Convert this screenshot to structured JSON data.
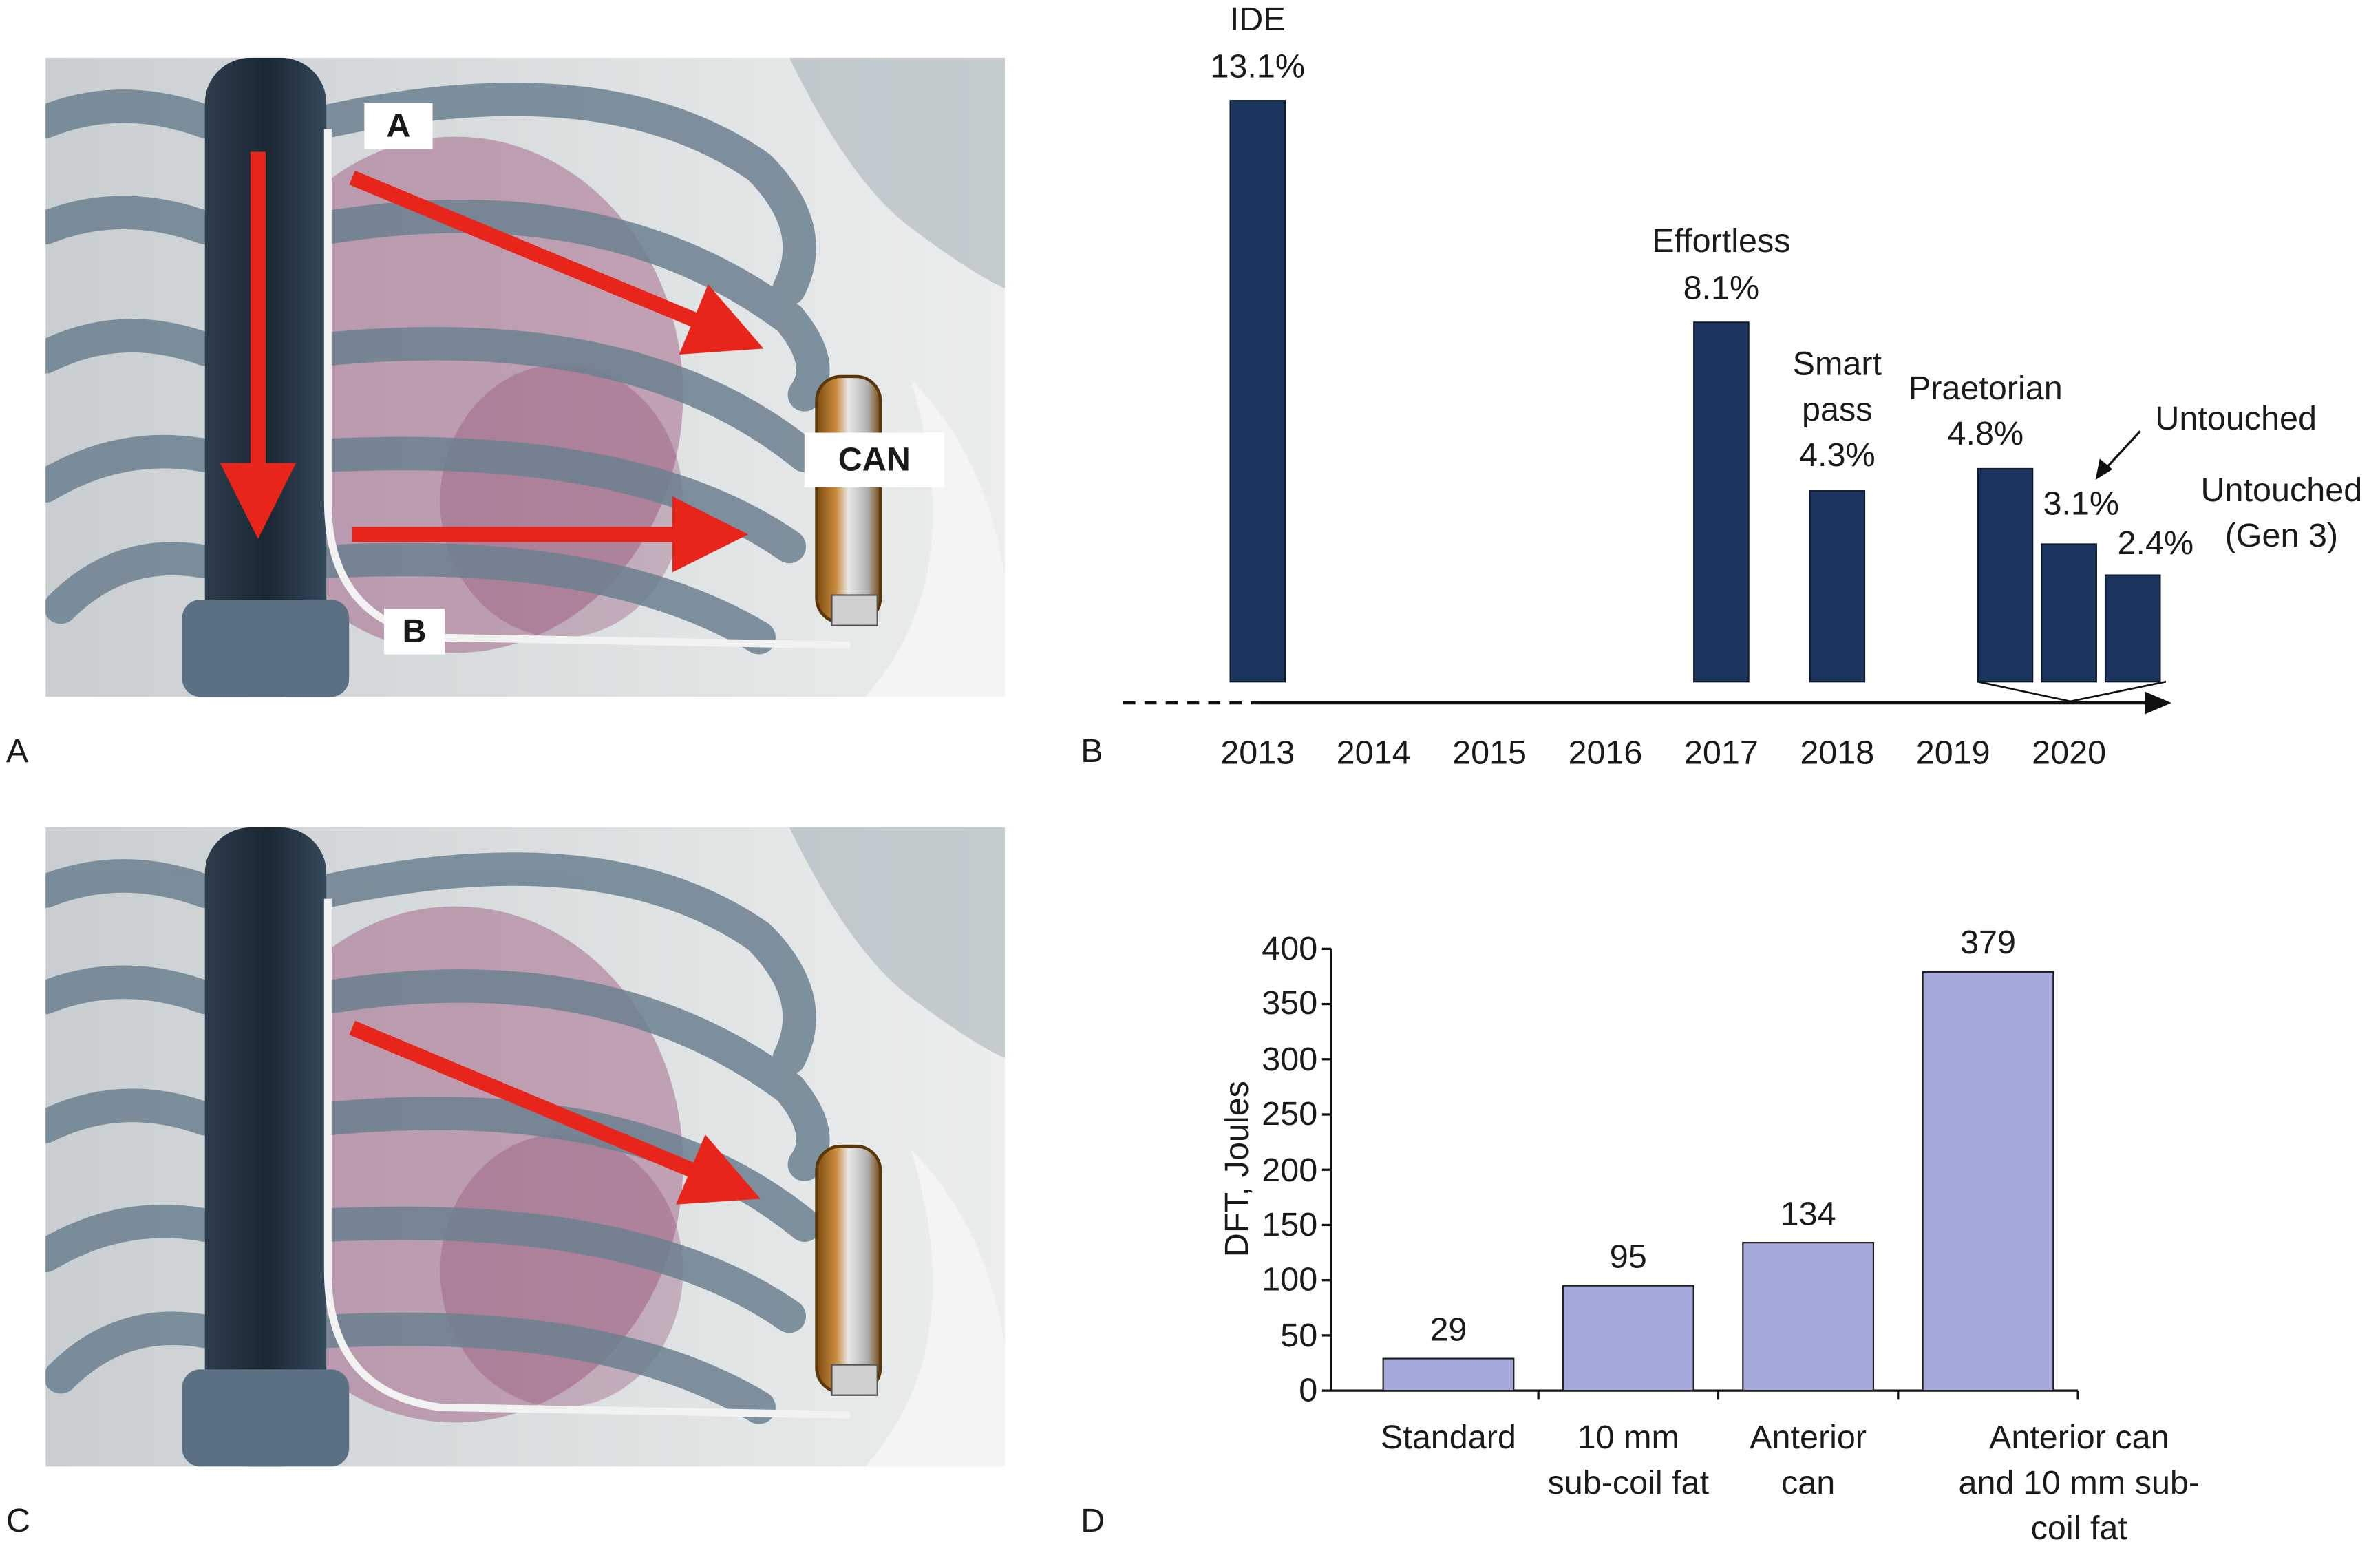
{
  "panel_labels": [
    "A",
    "B",
    "C",
    "D"
  ],
  "illustration_labels": [
    "A",
    "B",
    "CAN"
  ],
  "chart_data": [
    {
      "type": "bar",
      "categories": [
        "IDE",
        "Effortless",
        "Smart pass",
        "Praetorian",
        "Untouched",
        "Untouched (Gen 3)"
      ],
      "x": [
        2013,
        2017,
        2018,
        2020,
        2020,
        2020
      ],
      "values": [
        13.1,
        8.1,
        4.3,
        4.8,
        3.1,
        2.4
      ],
      "value_labels": [
        "13.1%",
        "8.1%",
        "4.3%",
        "4.8%",
        "3.1%",
        "2.4%"
      ],
      "color": "#1c355e",
      "xlim": [
        2011.84,
        2020.85
      ],
      "xticks": [
        2013,
        2014,
        2015,
        2016,
        2017,
        2018,
        2019,
        2020
      ],
      "ylim": [
        0,
        14
      ]
    },
    {
      "type": "bar",
      "categories": [
        "Standard",
        "10 mm sub-coil fat",
        "Anterior can",
        "Anterior can and 10 mm sub-coil fat"
      ],
      "values": [
        29,
        95,
        134,
        379
      ],
      "color": "#a5aadb",
      "y_label": "DFT, Joules",
      "ylim": [
        0,
        400
      ],
      "yticks": [
        0,
        50,
        100,
        150,
        200,
        250,
        300,
        350,
        400
      ]
    }
  ]
}
